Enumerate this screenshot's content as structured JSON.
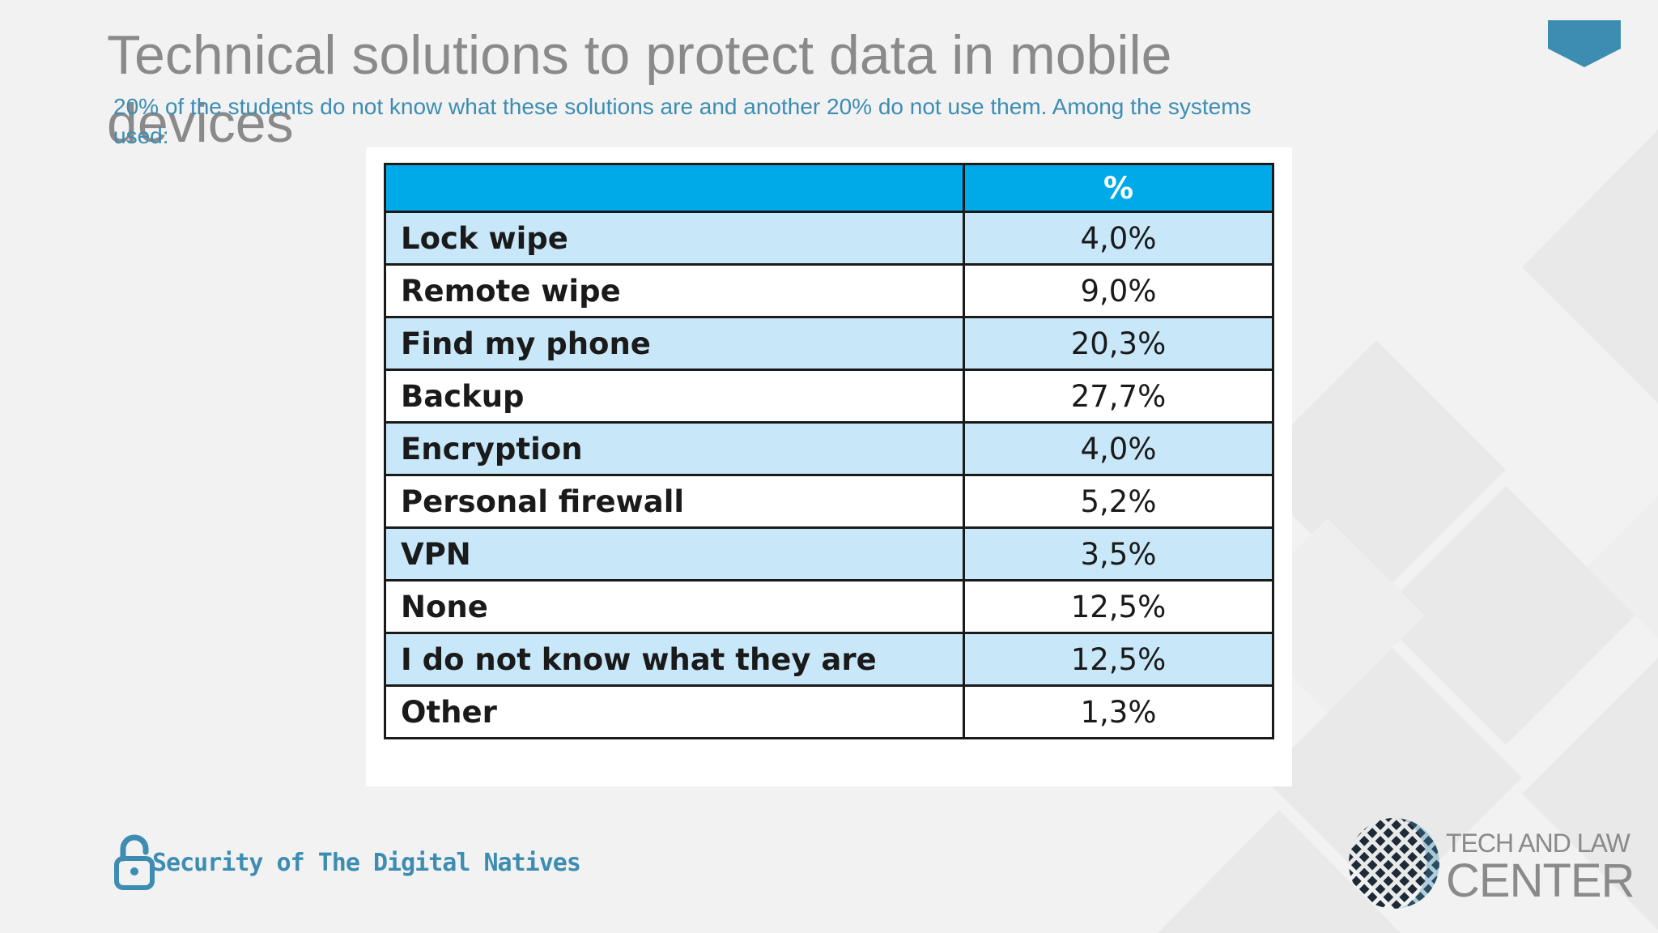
{
  "slide": {
    "title": "Technical solutions to protect data in mobile devices",
    "subtitle": "20% of the students do not know what these solutions are and another 20% do not use them. Among the systems used:"
  },
  "table": {
    "header": [
      "",
      "%"
    ],
    "rows": [
      {
        "label": "Lock wipe",
        "value": "4,0%"
      },
      {
        "label": "Remote wipe",
        "value": "9,0%"
      },
      {
        "label": "Find my phone",
        "value": "20,3%"
      },
      {
        "label": "Backup",
        "value": "27,7%"
      },
      {
        "label": "Encryption",
        "value": "4,0%"
      },
      {
        "label": "Personal firewall",
        "value": "5,2%"
      },
      {
        "label": "VPN",
        "value": "3,5%"
      },
      {
        "label": "None",
        "value": "12,5%"
      },
      {
        "label": "I do not know what they are",
        "value": "12,5%"
      },
      {
        "label": "Other",
        "value": "1,3%"
      }
    ]
  },
  "footer": {
    "brand": "Security of The Digital Natives",
    "brand_icon": "padlock-icon"
  },
  "logo": {
    "line1": "TECH AND LAW",
    "line2": "CENTER"
  },
  "colors": {
    "accent": "#3d8db3",
    "table_header": "#00aae8",
    "row_shade": "#c8e8fa",
    "title": "#8a8a8a"
  }
}
